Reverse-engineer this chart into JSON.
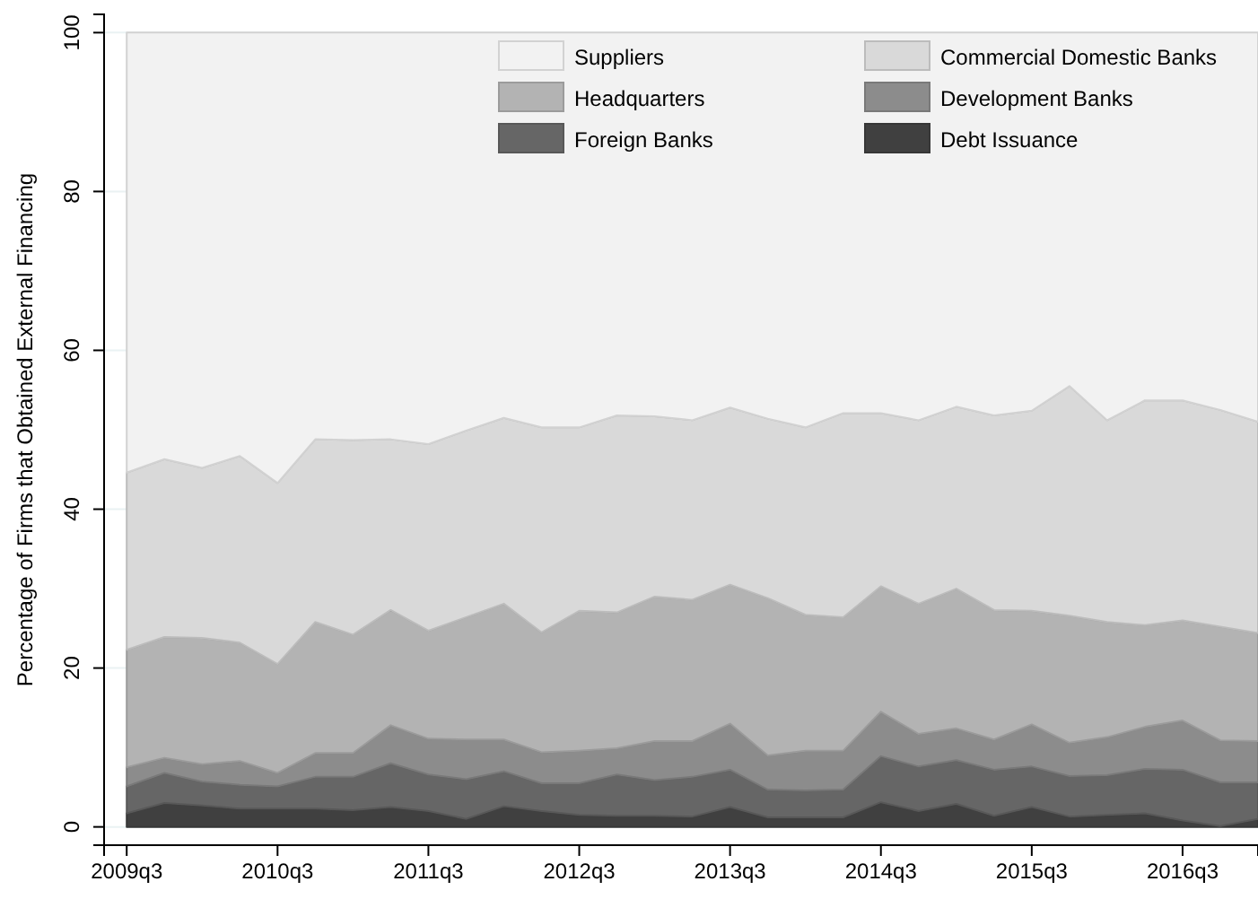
{
  "chart_data": {
    "type": "area",
    "stacked": true,
    "ylabel": "Percentage of Firms that Obtained External Financing",
    "categories": [
      "2009q3",
      null,
      null,
      null,
      "2010q3",
      null,
      null,
      null,
      "2011q3",
      null,
      null,
      null,
      "2012q3",
      null,
      null,
      null,
      "2013q3",
      null,
      null,
      null,
      "2014q3",
      null,
      null,
      null,
      "2015q3",
      null,
      null,
      null,
      "2016q3",
      null,
      null
    ],
    "ylim": [
      -2.3,
      102.3
    ],
    "yticks": [
      0,
      20,
      40,
      60,
      80,
      100
    ],
    "grid": "y",
    "legend": "top right",
    "series": [
      {
        "name": "Debt Issuance",
        "color": "#404040",
        "values": [
          1.7,
          3.0,
          2.7,
          2.3,
          2.3,
          2.3,
          2.1,
          2.5,
          2.0,
          1.0,
          2.6,
          2.0,
          1.5,
          1.4,
          1.4,
          1.3,
          2.5,
          1.2,
          1.2,
          1.2,
          3.1,
          2.0,
          2.9,
          1.4,
          2.5,
          1.3,
          1.5,
          1.7,
          0.8,
          0.1,
          1.0
        ]
      },
      {
        "name": "Foreign Banks",
        "color": "#666666",
        "values": [
          3.4,
          3.8,
          3.0,
          3.0,
          2.8,
          4.0,
          4.2,
          5.5,
          4.6,
          5.0,
          4.4,
          3.5,
          4.0,
          5.2,
          4.5,
          5.0,
          4.7,
          3.5,
          3.4,
          3.5,
          5.8,
          5.6,
          5.5,
          5.8,
          5.1,
          5.1,
          5.0,
          5.6,
          6.4,
          5.5,
          4.6
        ]
      },
      {
        "name": "Development Banks",
        "color": "#8c8c8c",
        "values": [
          2.4,
          1.9,
          2.2,
          3.0,
          1.7,
          3.0,
          3.0,
          4.8,
          4.5,
          5.0,
          4.0,
          3.9,
          4.1,
          3.3,
          4.9,
          4.5,
          5.8,
          4.3,
          5.0,
          4.9,
          5.6,
          4.1,
          4.0,
          3.8,
          5.3,
          4.2,
          4.8,
          5.3,
          6.2,
          5.3,
          5.2
        ]
      },
      {
        "name": "Headquarters",
        "color": "#b3b3b3",
        "values": [
          14.8,
          15.2,
          15.9,
          14.9,
          13.7,
          16.5,
          14.9,
          14.5,
          13.6,
          15.4,
          17.1,
          15.1,
          17.6,
          17.1,
          18.2,
          17.8,
          17.5,
          19.8,
          17.1,
          16.8,
          15.8,
          16.4,
          17.6,
          16.3,
          14.3,
          16.0,
          14.5,
          12.8,
          12.6,
          14.3,
          13.6
        ]
      },
      {
        "name": "Commercial Domestic Banks",
        "color": "#d9d9d9",
        "values": [
          22.3,
          22.4,
          21.4,
          23.5,
          22.8,
          23.0,
          24.5,
          21.5,
          23.5,
          23.5,
          23.4,
          25.8,
          23.1,
          24.8,
          22.7,
          22.6,
          22.3,
          22.6,
          23.6,
          25.7,
          21.8,
          23.1,
          22.9,
          24.5,
          25.2,
          28.9,
          25.4,
          28.3,
          27.7,
          27.3,
          26.6
        ]
      },
      {
        "name": "Suppliers",
        "color": "#f2f2f2",
        "values": [
          55.4,
          53.7,
          54.8,
          53.3,
          56.7,
          51.2,
          51.3,
          51.2,
          51.8,
          50.1,
          48.5,
          49.7,
          49.7,
          48.2,
          48.3,
          48.8,
          47.2,
          48.6,
          49.7,
          47.9,
          47.9,
          48.8,
          47.1,
          48.2,
          47.6,
          44.5,
          48.8,
          46.3,
          46.3,
          47.5,
          49.0
        ]
      }
    ]
  }
}
